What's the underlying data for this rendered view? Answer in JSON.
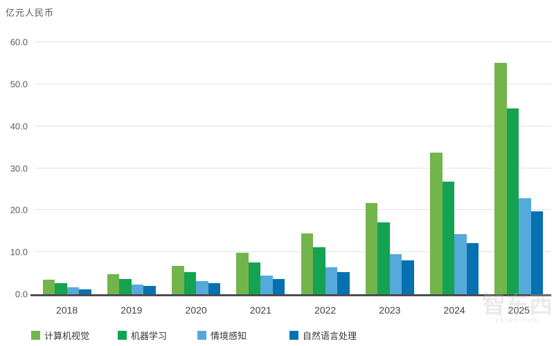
{
  "chart_data": {
    "type": "bar",
    "title": "亿元人民币",
    "xlabel": "",
    "ylabel": "亿元人民币",
    "categories": [
      "2018",
      "2019",
      "2020",
      "2021",
      "2022",
      "2023",
      "2024",
      "2025"
    ],
    "series": [
      {
        "name": "计算机视觉",
        "color": "#72B54B",
        "values": [
          3.4,
          4.8,
          6.8,
          9.8,
          14.4,
          21.7,
          33.7,
          55.0
        ]
      },
      {
        "name": "机器学习",
        "color": "#14A351",
        "values": [
          2.6,
          3.6,
          5.2,
          7.5,
          11.1,
          17.1,
          26.8,
          44.2
        ]
      },
      {
        "name": "情境感知",
        "color": "#56A9DB",
        "values": [
          1.6,
          2.3,
          3.2,
          4.4,
          6.4,
          9.5,
          14.3,
          22.9
        ]
      },
      {
        "name": "自然语言处理",
        "color": "#0671B0",
        "values": [
          1.2,
          1.9,
          2.6,
          3.7,
          5.3,
          8.0,
          12.2,
          19.8
        ]
      }
    ],
    "ylim": [
      0,
      60
    ],
    "ytick_step": 10,
    "ytick_labels": [
      "0.0",
      "10.0",
      "20.0",
      "30.0",
      "40.0",
      "50.0",
      "60.0"
    ],
    "grid": true,
    "legend_position": "bottom"
  },
  "watermark": {
    "text": "智东西",
    "subtext": "zhidx.com"
  },
  "colors": {
    "gridline": "#e1e1e1",
    "baseline": "#4d4d4d",
    "tick_text": "#595959",
    "year_text": "#404040"
  }
}
